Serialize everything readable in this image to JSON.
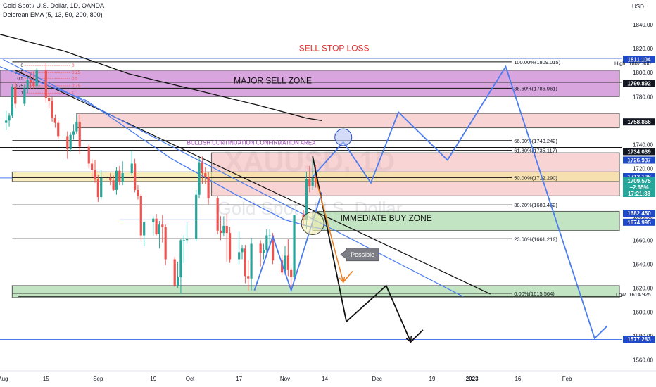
{
  "header": {
    "symbol_line": "Gold Spot / U.S. Dollar, 1D, OANDA",
    "indicator_line": "Delorean EMA (5, 13, 50, 200, 800)"
  },
  "watermark": {
    "ticker": "XAUUSD, 1D",
    "name": "Gold Spot / U.S. Dollar"
  },
  "colors": {
    "bull": "#26a69a",
    "bear": "#ef5350",
    "trend": "#4a7cf0",
    "black": "#111111",
    "sell_zone": "#c77fd0",
    "resistance_zone": "#f4b0b0",
    "buy_zone": "#a8d8a8",
    "pivot_zone": "#f5e6a0",
    "tag_blue": "#1e49c8",
    "tag_black": "#131722",
    "tag_red": "#ef5350",
    "tag_green": "#26a69a"
  },
  "chart_data": {
    "type": "candlestick",
    "y_axis": {
      "label": "USD",
      "ylim": [
        1552,
        1856
      ],
      "ticks": [
        1560,
        1580,
        1600,
        1620,
        1640,
        1660,
        1680,
        1700,
        1720,
        1740,
        1760,
        1780,
        1800,
        1820,
        1840
      ]
    },
    "x_axis": {
      "labels": [
        {
          "text": "Aug",
          "x": "2022-08-01"
        },
        {
          "text": "15",
          "x": "2022-08-15"
        },
        {
          "text": "Sep",
          "x": "2022-09-01"
        },
        {
          "text": "19",
          "x": "2022-09-19"
        },
        {
          "text": "Oct",
          "x": "2022-10-01"
        },
        {
          "text": "17",
          "x": "2022-10-17"
        },
        {
          "text": "Nov",
          "x": "2022-11-01"
        },
        {
          "text": "14",
          "x": "2022-11-14"
        },
        {
          "text": "Dec",
          "x": "2022-12-01"
        },
        {
          "text": "19",
          "x": "2022-12-19"
        },
        {
          "text": "2023",
          "x": "2023-01-01"
        },
        {
          "text": "16",
          "x": "2023-01-16"
        },
        {
          "text": "Feb",
          "x": "2023-02-01"
        }
      ],
      "range": [
        "2022-07-31",
        "2023-02-19"
      ]
    },
    "candles": [
      [
        "2022-08-02",
        1758,
        1768,
        1752,
        1760
      ],
      [
        "2022-08-03",
        1760,
        1766,
        1755,
        1764
      ],
      [
        "2022-08-04",
        1764,
        1790,
        1762,
        1788
      ],
      [
        "2022-08-05",
        1788,
        1792,
        1770,
        1774
      ],
      [
        "2022-08-08",
        1774,
        1790,
        1772,
        1787
      ],
      [
        "2022-08-09",
        1787,
        1797,
        1783,
        1794
      ],
      [
        "2022-08-10",
        1794,
        1800,
        1786,
        1792
      ],
      [
        "2022-08-11",
        1792,
        1801,
        1786,
        1789
      ],
      [
        "2022-08-12",
        1789,
        1804,
        1787,
        1802
      ],
      [
        "2022-08-15",
        1802,
        1808,
        1775,
        1779
      ],
      [
        "2022-08-16",
        1779,
        1783,
        1770,
        1776
      ],
      [
        "2022-08-17",
        1776,
        1780,
        1759,
        1762
      ],
      [
        "2022-08-18",
        1762,
        1765,
        1754,
        1758
      ],
      [
        "2022-08-19",
        1758,
        1760,
        1745,
        1747
      ],
      [
        "2022-08-22",
        1747,
        1751,
        1728,
        1736
      ],
      [
        "2022-08-23",
        1736,
        1750,
        1734,
        1748
      ],
      [
        "2022-08-24",
        1748,
        1757,
        1744,
        1751
      ],
      [
        "2022-08-25",
        1751,
        1765,
        1749,
        1759
      ],
      [
        "2022-08-26",
        1759,
        1765,
        1732,
        1738
      ],
      [
        "2022-08-29",
        1738,
        1740,
        1720,
        1724
      ],
      [
        "2022-08-30",
        1724,
        1728,
        1713,
        1719
      ],
      [
        "2022-08-31",
        1719,
        1727,
        1708,
        1711
      ],
      [
        "2022-09-01",
        1711,
        1715,
        1692,
        1696
      ],
      [
        "2022-09-02",
        1696,
        1719,
        1694,
        1712
      ],
      [
        "2022-09-05",
        1712,
        1716,
        1706,
        1710
      ],
      [
        "2022-09-06",
        1710,
        1714,
        1701,
        1702
      ],
      [
        "2022-09-07",
        1702,
        1721,
        1698,
        1718
      ],
      [
        "2022-09-08",
        1718,
        1722,
        1706,
        1709
      ],
      [
        "2022-09-09",
        1709,
        1726,
        1706,
        1716
      ],
      [
        "2022-09-12",
        1716,
        1735,
        1715,
        1724
      ],
      [
        "2022-09-13",
        1724,
        1728,
        1700,
        1702
      ],
      [
        "2022-09-14",
        1702,
        1706,
        1694,
        1697
      ],
      [
        "2022-09-15",
        1697,
        1699,
        1660,
        1664
      ],
      [
        "2022-09-16",
        1664,
        1676,
        1655,
        1675
      ],
      [
        "2022-09-19",
        1675,
        1680,
        1664,
        1678
      ],
      [
        "2022-09-20",
        1678,
        1682,
        1664,
        1665
      ],
      [
        "2022-09-21",
        1665,
        1676,
        1653,
        1673
      ],
      [
        "2022-09-22",
        1673,
        1681,
        1658,
        1671
      ],
      [
        "2022-09-23",
        1671,
        1673,
        1639,
        1644
      ],
      [
        "2022-09-26",
        1644,
        1646,
        1621,
        1622
      ],
      [
        "2022-09-27",
        1622,
        1642,
        1620,
        1629
      ],
      [
        "2022-09-28",
        1629,
        1661,
        1615,
        1660
      ],
      [
        "2022-09-29",
        1660,
        1664,
        1641,
        1660
      ],
      [
        "2022-09-30",
        1660,
        1675,
        1657,
        1661
      ],
      [
        "2022-10-03",
        1661,
        1702,
        1659,
        1698
      ],
      [
        "2022-10-04",
        1698,
        1729,
        1695,
        1725
      ],
      [
        "2022-10-05",
        1725,
        1730,
        1707,
        1716
      ],
      [
        "2022-10-06",
        1716,
        1721,
        1707,
        1713
      ],
      [
        "2022-10-07",
        1713,
        1717,
        1690,
        1695
      ],
      [
        "2022-10-10",
        1695,
        1697,
        1665,
        1668
      ],
      [
        "2022-10-11",
        1668,
        1680,
        1660,
        1666
      ],
      [
        "2022-10-12",
        1666,
        1680,
        1663,
        1672
      ],
      [
        "2022-10-13",
        1672,
        1682,
        1642,
        1666
      ],
      [
        "2022-10-14",
        1666,
        1671,
        1641,
        1644
      ],
      [
        "2022-10-17",
        1644,
        1667,
        1640,
        1650
      ],
      [
        "2022-10-18",
        1650,
        1656,
        1644,
        1653
      ],
      [
        "2022-10-19",
        1653,
        1656,
        1624,
        1630
      ],
      [
        "2022-10-20",
        1630,
        1643,
        1618,
        1628
      ],
      [
        "2022-10-21",
        1628,
        1662,
        1618,
        1657
      ],
      [
        "2022-10-24",
        1657,
        1660,
        1638,
        1649
      ],
      [
        "2022-10-25",
        1649,
        1657,
        1644,
        1652
      ],
      [
        "2022-10-26",
        1652,
        1669,
        1647,
        1664
      ],
      [
        "2022-10-27",
        1664,
        1669,
        1655,
        1664
      ],
      [
        "2022-10-28",
        1664,
        1666,
        1640,
        1643
      ],
      [
        "2022-10-31",
        1643,
        1648,
        1631,
        1633
      ],
      [
        "2022-11-01",
        1633,
        1655,
        1631,
        1647
      ],
      [
        "2022-11-02",
        1647,
        1661,
        1630,
        1635
      ],
      [
        "2022-11-03",
        1635,
        1637,
        1617,
        1629
      ],
      [
        "2022-11-04",
        1629,
        1680,
        1627,
        1681
      ],
      [
        "2022-11-07",
        1681,
        1685,
        1672,
        1677
      ],
      [
        "2022-11-08",
        1677,
        1717,
        1669,
        1711
      ],
      [
        "2022-11-09",
        1711,
        1722,
        1700,
        1705
      ],
      [
        "2022-11-10",
        1705,
        1730,
        1702,
        1712
      ],
      [
        "2022-11-11",
        1712,
        1723,
        1704,
        1709
      ]
    ],
    "moving_averages": [
      {
        "name": "EMA 200",
        "color": "#111111",
        "points": [
          [
            "2022-07-31",
            1832
          ],
          [
            "2022-08-21",
            1818
          ],
          [
            "2022-09-11",
            1799
          ],
          [
            "2022-10-02",
            1786
          ],
          [
            "2022-10-23",
            1773
          ],
          [
            "2022-11-08",
            1762
          ],
          [
            "2022-11-13",
            1760
          ]
        ]
      },
      {
        "name": "EMA 50",
        "color": "#4a7cf0",
        "points": [
          [
            "2022-07-31",
            1805
          ],
          [
            "2022-08-28",
            1777
          ],
          [
            "2022-09-25",
            1728
          ],
          [
            "2022-10-16",
            1698
          ],
          [
            "2022-11-01",
            1677
          ],
          [
            "2022-11-08",
            1672
          ],
          [
            "2022-11-14",
            1669
          ]
        ]
      }
    ],
    "zones": [
      {
        "name": "major-sell-zone",
        "label": "MAJOR SELL ZONE",
        "y": [
          1780,
          1802
        ],
        "x": [
          "2022-07-31",
          "2023-02-19"
        ],
        "color": "sell_zone"
      },
      {
        "name": "upper-resistance-zone",
        "label": "",
        "y": [
          1754,
          1766
        ],
        "x": [
          "2022-08-25",
          "2023-02-19"
        ],
        "color": "resistance_zone"
      },
      {
        "name": "resistance-zone",
        "label": "",
        "y": [
          1697,
          1733
        ],
        "x": [
          "2022-10-08",
          "2023-02-19"
        ],
        "color": "resistance_zone"
      },
      {
        "name": "pivot-zone",
        "label": "",
        "y": [
          1709,
          1717
        ],
        "x": [
          "2022-08-04",
          "2023-02-19"
        ],
        "color": "pivot_zone"
      },
      {
        "name": "immediate-buy-zone",
        "label": "IMMEDIATE BUY ZONE",
        "y": [
          1668,
          1684
        ],
        "x": [
          "2022-11-10",
          "2023-02-19"
        ],
        "color": "buy_zone"
      },
      {
        "name": "demand-zone",
        "label": "",
        "y": [
          1612,
          1622
        ],
        "x": [
          "2022-08-04",
          "2023-02-19"
        ],
        "color": "buy_zone"
      }
    ],
    "fib_levels": [
      {
        "label": "100.00%(1809.015)",
        "value": 1809.015
      },
      {
        "label": "88.60%(1786.961)",
        "value": 1786.961
      },
      {
        "label": "66.00%(1743.242)",
        "value": 1743.242
      },
      {
        "label": "61.80%(1735.117)",
        "value": 1735.117
      },
      {
        "label": "50.00%(1712.290)",
        "value": 1712.29
      },
      {
        "label": "38.20%(1689.462)",
        "value": 1689.462
      },
      {
        "label": "23.60%(1661.219)",
        "value": 1661.219
      },
      {
        "label": "0.00%(1615.564)",
        "value": 1615.564
      }
    ],
    "fib_range": [
      "2022-08-04",
      "2023-01-14"
    ],
    "mini_fib": {
      "color": "#ef5350",
      "levels": [
        {
          "value": 1806,
          "label": "0"
        },
        {
          "value": 1800,
          "label": "0.25"
        },
        {
          "value": 1795,
          "label": "0.5"
        },
        {
          "value": 1789,
          "label": "0.75"
        },
        {
          "value": 1783,
          "label": "1"
        }
      ]
    },
    "horizontal_lines": [
      {
        "name": "sell-stop-loss-line",
        "value": 1812,
        "color": "#1e49c8",
        "from": "2022-07-31"
      },
      {
        "name": "fib-anchor-line",
        "value": 1792,
        "color": "#111111",
        "from": "2022-07-31"
      },
      {
        "name": "line-1734",
        "value": 1737.5,
        "color": "#111111",
        "from": "2022-07-31"
      },
      {
        "name": "line-1613",
        "value": 1613,
        "color": "#111111",
        "from": "2022-08-06"
      },
      {
        "name": "line-1577",
        "value": 1577,
        "color": "#4a7cf0",
        "from": "2022-07-31"
      },
      {
        "name": "line-1712",
        "value": 1712,
        "color": "#4a7cf0",
        "from": "2022-07-31",
        "to": "2022-08-04"
      },
      {
        "name": "line-1677",
        "value": 1677,
        "color": "#4a7cf0",
        "from": "2022-09-08",
        "to": "2022-11-10"
      }
    ],
    "trendlines": [
      {
        "name": "black-trendline",
        "color": "#111111",
        "width": 1.2,
        "points": [
          [
            "2022-08-05",
            1802
          ],
          [
            "2023-01-07",
            1615
          ]
        ]
      },
      {
        "name": "blue-trendline",
        "color": "#4a7cf0",
        "width": 1.2,
        "points": [
          [
            "2022-08-01",
            1811
          ],
          [
            "2022-12-29",
            1613
          ]
        ]
      }
    ],
    "projections": [
      {
        "name": "blue-zigzag-past",
        "color": "#4a7cf0",
        "width": 1.8,
        "points": [
          [
            "2022-10-22",
            1618
          ],
          [
            "2022-10-28",
            1663
          ],
          [
            "2022-11-03",
            1618
          ],
          [
            "2022-11-13",
            1700
          ]
        ]
      },
      {
        "name": "blue-zigzag-forecast",
        "color": "#4a7cf0",
        "width": 1.8,
        "points": [
          [
            "2022-11-10",
            1713
          ],
          [
            "2022-11-20",
            1742
          ],
          [
            "2022-11-29",
            1708
          ],
          [
            "2022-12-08",
            1767
          ],
          [
            "2022-12-24",
            1727
          ],
          [
            "2023-01-12",
            1805
          ],
          [
            "2023-02-10",
            1578
          ],
          [
            "2023-02-14",
            1588
          ]
        ]
      },
      {
        "name": "black-zigzag-forecast",
        "color": "#111111",
        "width": 1.8,
        "points": [
          [
            "2022-11-10",
            1730
          ],
          [
            "2022-11-21",
            1592
          ],
          [
            "2022-12-04",
            1622
          ],
          [
            "2022-12-12",
            1575
          ],
          [
            "2022-12-16",
            1585
          ]
        ]
      },
      {
        "name": "orange-arrow",
        "color": "#f07c1a",
        "width": 1.5,
        "points": [
          [
            "2022-11-11",
            1712
          ],
          [
            "2022-11-20",
            1625
          ],
          [
            "2022-11-23",
            1634
          ]
        ]
      }
    ],
    "circles": [
      {
        "name": "retest-circle",
        "x": "2022-11-20",
        "y": 1746,
        "r": 12,
        "fill": "#b8c4f5",
        "stroke": "#1e49c8"
      },
      {
        "name": "breakout-circle",
        "x": "2022-11-10",
        "y": 1674,
        "r": 16,
        "fill": "#f4eeae",
        "stroke": "#444444"
      }
    ],
    "labels": [
      {
        "name": "sell-stop-loss-label",
        "text": "SELL STOP LOSS",
        "x": "2022-11-17",
        "y": 1818,
        "color": "#e03030",
        "size": 12
      },
      {
        "name": "major-sell-zone-label",
        "text": "MAJOR SELL ZONE",
        "x": "2022-10-28",
        "y": 1791,
        "color": "#111111",
        "size": 12
      },
      {
        "name": "bullish-continuation-label",
        "text": "BULLISH CONTINUATION CONFIRMATION AREA",
        "x": "2022-10-21",
        "y": 1740,
        "color": "#9b3db2",
        "size": 8
      },
      {
        "name": "immediate-buy-zone-label",
        "text": "IMMEDIATE BUY ZONE",
        "x": "2022-12-04",
        "y": 1676,
        "color": "#111111",
        "size": 12
      }
    ],
    "callout": {
      "text": "Possible",
      "x": "2022-11-21",
      "y": 1648
    },
    "price_tags": [
      {
        "name": "tag-1811",
        "value": 1811.104,
        "text": "1811.104",
        "color": "tag_blue"
      },
      {
        "name": "tag-1790",
        "value": 1790.892,
        "text": "1790.892",
        "color": "tag_black"
      },
      {
        "name": "tag-1758",
        "value": 1758.866,
        "text": "1758.866",
        "color": "tag_black"
      },
      {
        "name": "tag-1734",
        "value": 1734.039,
        "text": "1734.039",
        "color": "tag_black"
      },
      {
        "name": "tag-1726",
        "value": 1726.937,
        "text": "1726.937",
        "color": "tag_blue"
      },
      {
        "name": "tag-1713",
        "value": 1713.108,
        "text": "1713.108",
        "color": "tag_blue"
      },
      {
        "name": "tag-1682",
        "value": 1682.45,
        "text": "1682.450",
        "color": "tag_blue"
      },
      {
        "name": "tag-1674",
        "value": 1674.995,
        "text": "1674.995",
        "color": "tag_blue"
      },
      {
        "name": "tag-1577",
        "value": 1577.283,
        "text": "1577.283",
        "color": "tag_blue"
      }
    ],
    "current_price": {
      "value": 1709.575,
      "lines": [
        "1709.575",
        "−2.65%",
        "17:21:38"
      ]
    },
    "high": {
      "label": "High",
      "value": 1807.96,
      "text": "1807.960"
    },
    "low": {
      "label": "Low",
      "value": 1614.925,
      "text": "1614.925"
    }
  }
}
